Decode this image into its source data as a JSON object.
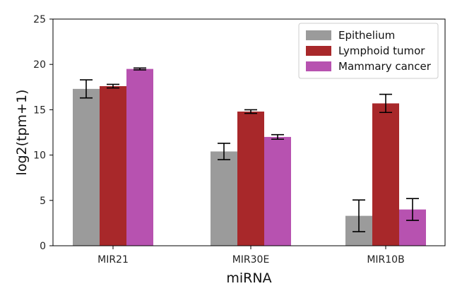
{
  "chart_data": {
    "type": "bar",
    "title": "",
    "xlabel": "miRNA",
    "ylabel": "log2(tpm+1)",
    "ylim": [
      0,
      25
    ],
    "yticks": [
      0,
      5,
      10,
      15,
      20,
      25
    ],
    "grid": false,
    "legend_position": "top-right",
    "categories": [
      "MIR21",
      "MIR30E",
      "MIR10B"
    ],
    "series": [
      {
        "name": "Epithelium",
        "color": "#9b9b9b",
        "values": [
          17.3,
          10.4,
          3.3
        ],
        "errors": [
          1.0,
          0.9,
          1.75
        ]
      },
      {
        "name": "Lymphoid tumor",
        "color": "#a8282a",
        "values": [
          17.6,
          14.8,
          15.7
        ],
        "errors": [
          0.2,
          0.2,
          1.0
        ]
      },
      {
        "name": "Mammary cancer",
        "color": "#b752b0",
        "values": [
          19.5,
          12.0,
          4.0
        ],
        "errors": [
          0.1,
          0.25,
          1.2
        ]
      }
    ]
  }
}
